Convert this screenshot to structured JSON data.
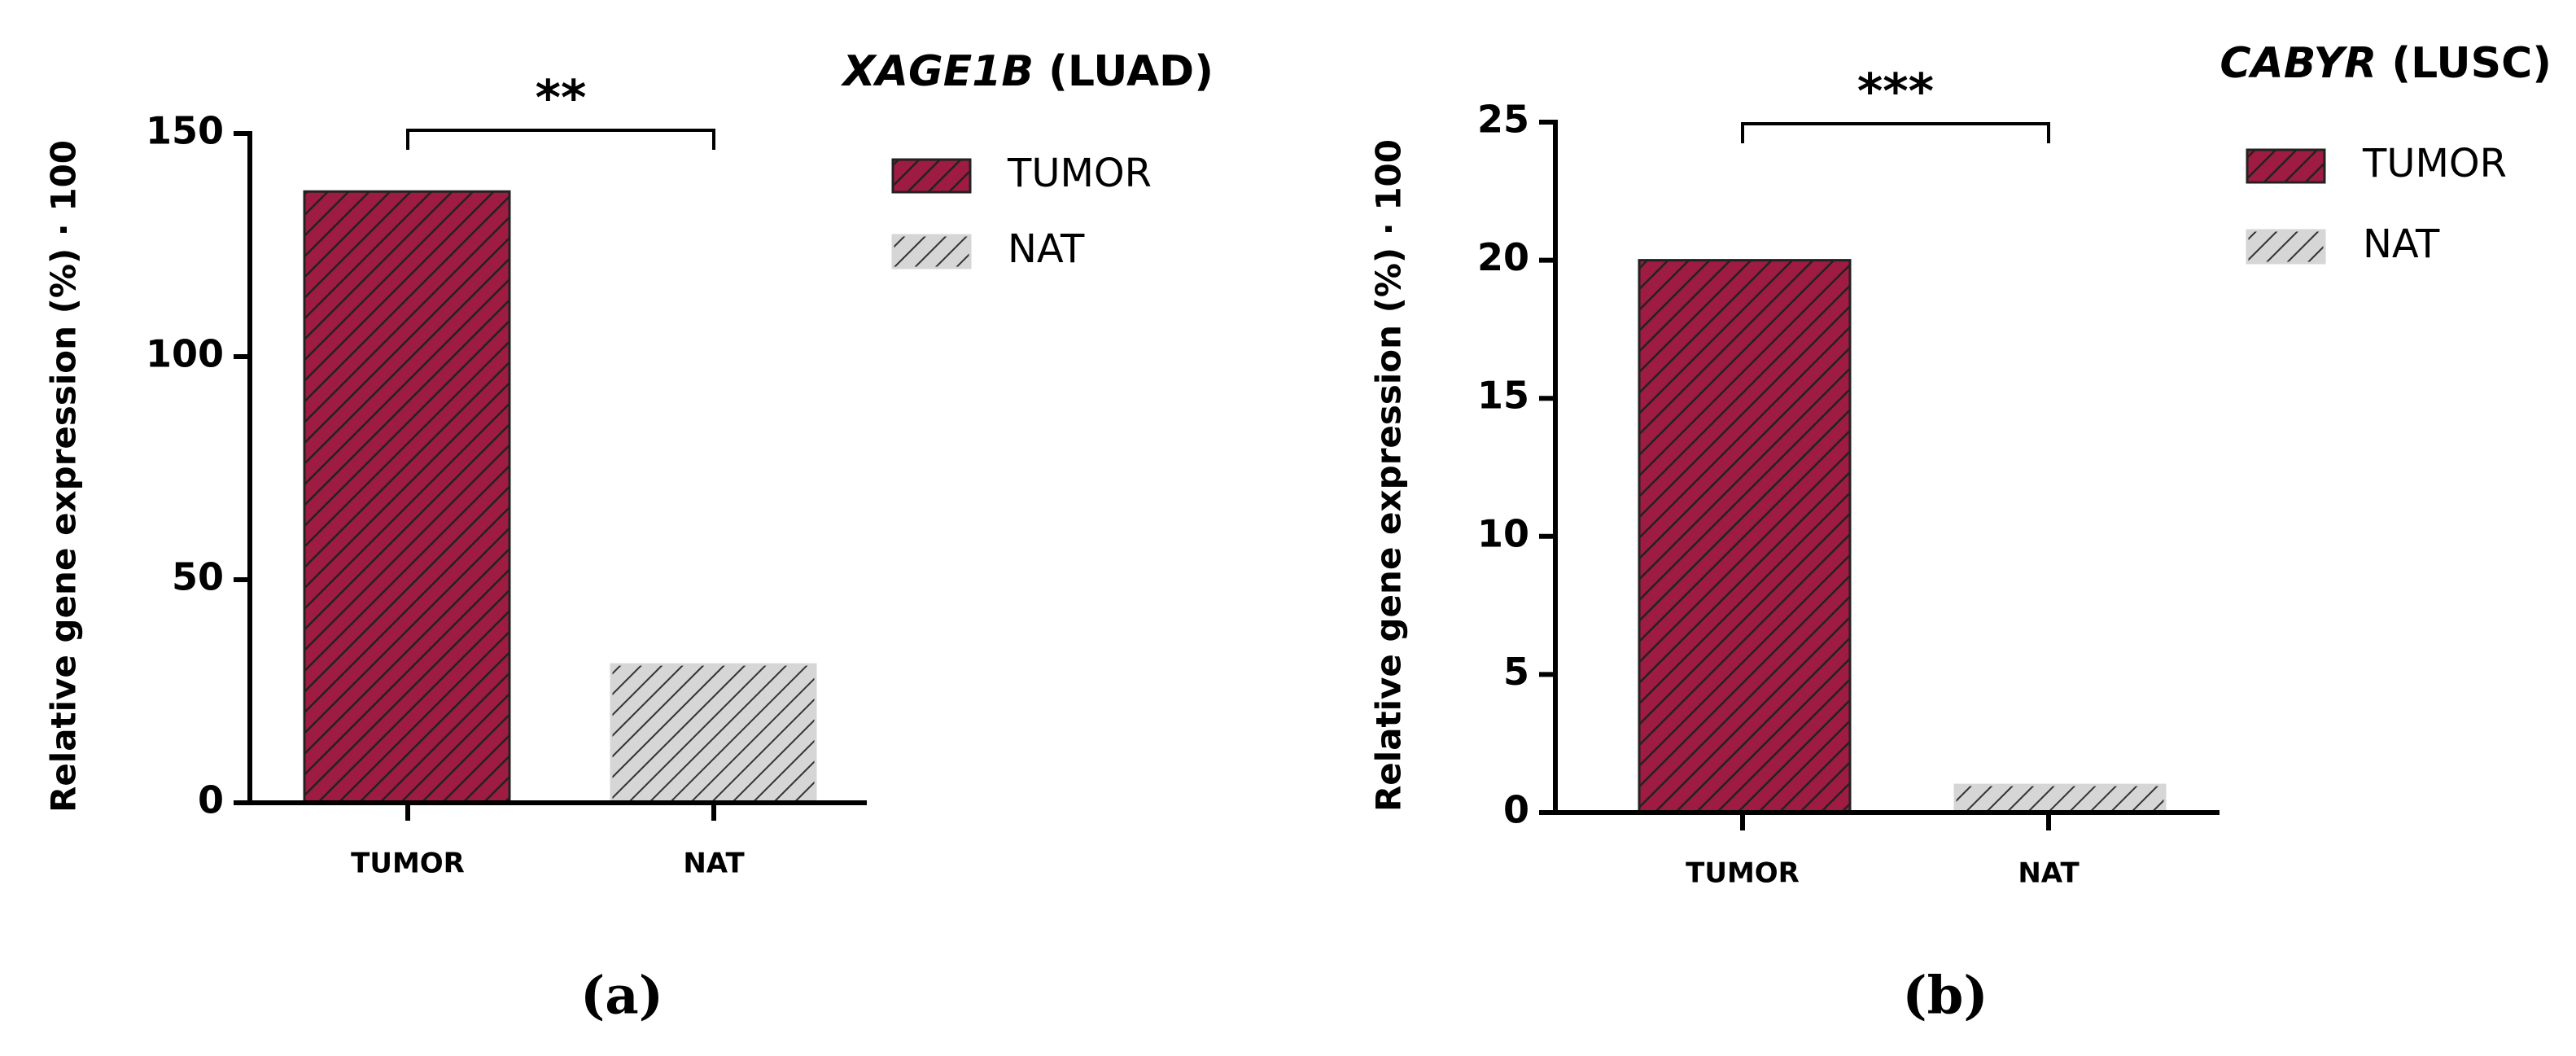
{
  "chart_data": [
    {
      "type": "bar",
      "title": {
        "gene": "XAGE1B",
        "cohort": "(LUAD)"
      },
      "y_label": "Relative gene expression (%) · 100",
      "categories": [
        "TUMOR",
        "NAT"
      ],
      "values": [
        137,
        31
      ],
      "colors": [
        "#9e1b42",
        "#d6d6d6"
      ],
      "ylim": [
        0,
        150
      ],
      "yticks": [
        0,
        50,
        100,
        150
      ],
      "significance": "**",
      "panel_label": "(a)",
      "legend": "top-right"
    },
    {
      "type": "bar",
      "title": {
        "gene": "CABYR",
        "cohort": "(LUSC)"
      },
      "y_label": "Relative gene expression (%) · 100",
      "categories": [
        "TUMOR",
        "NAT"
      ],
      "values": [
        20,
        1
      ],
      "colors": [
        "#9e1b42",
        "#d6d6d6"
      ],
      "ylim": [
        0,
        25
      ],
      "yticks": [
        0,
        5,
        10,
        15,
        20,
        25
      ],
      "significance": "***",
      "panel_label": "(b)",
      "legend": "top-right"
    }
  ]
}
